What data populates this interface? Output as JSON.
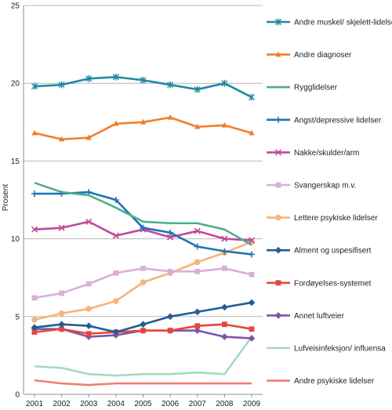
{
  "chart_data": {
    "type": "line",
    "title": "",
    "xlabel": "",
    "ylabel": "Prosent",
    "ylim": [
      0,
      25
    ],
    "yticks": [
      0,
      5,
      10,
      15,
      20,
      25
    ],
    "grid": "horizontal",
    "legend_position": "right",
    "x": [
      "2001",
      "2002",
      "2003",
      "2004",
      "2005",
      "2006",
      "2007",
      "2008",
      "2009"
    ],
    "series": [
      {
        "name": "Andre muskel/ skjelett-lidelser",
        "color": "#1f8aa3",
        "marker": "asterisk",
        "values": [
          19.8,
          19.9,
          20.3,
          20.4,
          20.2,
          19.9,
          19.6,
          20.0,
          19.1
        ]
      },
      {
        "name": "Andre diagnoser",
        "color": "#f07f2a",
        "marker": "triangle",
        "values": [
          16.8,
          16.4,
          16.5,
          17.4,
          17.5,
          17.8,
          17.2,
          17.3,
          16.8
        ]
      },
      {
        "name": "Rygglidelser",
        "color": "#4bb08a",
        "marker": "none",
        "values": [
          13.6,
          13.0,
          12.8,
          12.0,
          11.1,
          11.0,
          11.0,
          10.6,
          9.6
        ]
      },
      {
        "name": "Angst/depressive lidelser",
        "color": "#2272b4",
        "marker": "plus",
        "values": [
          12.9,
          12.9,
          13.0,
          12.5,
          10.7,
          10.4,
          9.5,
          9.2,
          9.0
        ]
      },
      {
        "name": "Nakke/skulder/arm",
        "color": "#c2489e",
        "marker": "x",
        "values": [
          10.6,
          10.7,
          11.1,
          10.2,
          10.6,
          10.1,
          10.5,
          10.0,
          9.9
        ]
      },
      {
        "name": "Svangerskap m.v.",
        "color": "#dcaed6",
        "marker": "square",
        "values": [
          6.2,
          6.5,
          7.1,
          7.8,
          8.1,
          7.9,
          7.9,
          8.1,
          7.7
        ]
      },
      {
        "name": "Lettere psykiske lidelser",
        "color": "#f5b47c",
        "marker": "circle",
        "values": [
          4.8,
          5.2,
          5.5,
          6.0,
          7.2,
          7.8,
          8.5,
          9.1,
          9.8
        ]
      },
      {
        "name": "Alment og uspesifisert",
        "color": "#1f5e96",
        "marker": "diamond",
        "values": [
          4.3,
          4.5,
          4.4,
          4.0,
          4.5,
          5.0,
          5.3,
          5.6,
          5.9
        ]
      },
      {
        "name": "Fordøyelses-systemet",
        "color": "#e2483f",
        "marker": "square",
        "values": [
          4.0,
          4.2,
          3.9,
          4.0,
          4.1,
          4.1,
          4.4,
          4.5,
          4.2
        ]
      },
      {
        "name": "Annet luftveier",
        "color": "#8055a8",
        "marker": "diamond",
        "values": [
          4.2,
          4.2,
          3.7,
          3.8,
          4.1,
          4.1,
          4.1,
          3.7,
          3.6
        ]
      },
      {
        "name": "Lufveisinfeksjon/ influensa",
        "color": "#a5d9c0",
        "marker": "none",
        "values": [
          1.8,
          1.7,
          1.3,
          1.2,
          1.3,
          1.3,
          1.4,
          1.3,
          3.7
        ]
      },
      {
        "name": "Andre psykiske lidelser",
        "color": "#ee7f6b",
        "marker": "none",
        "values": [
          0.9,
          0.7,
          0.6,
          0.7,
          0.7,
          0.7,
          0.7,
          0.7,
          0.7
        ]
      }
    ]
  }
}
